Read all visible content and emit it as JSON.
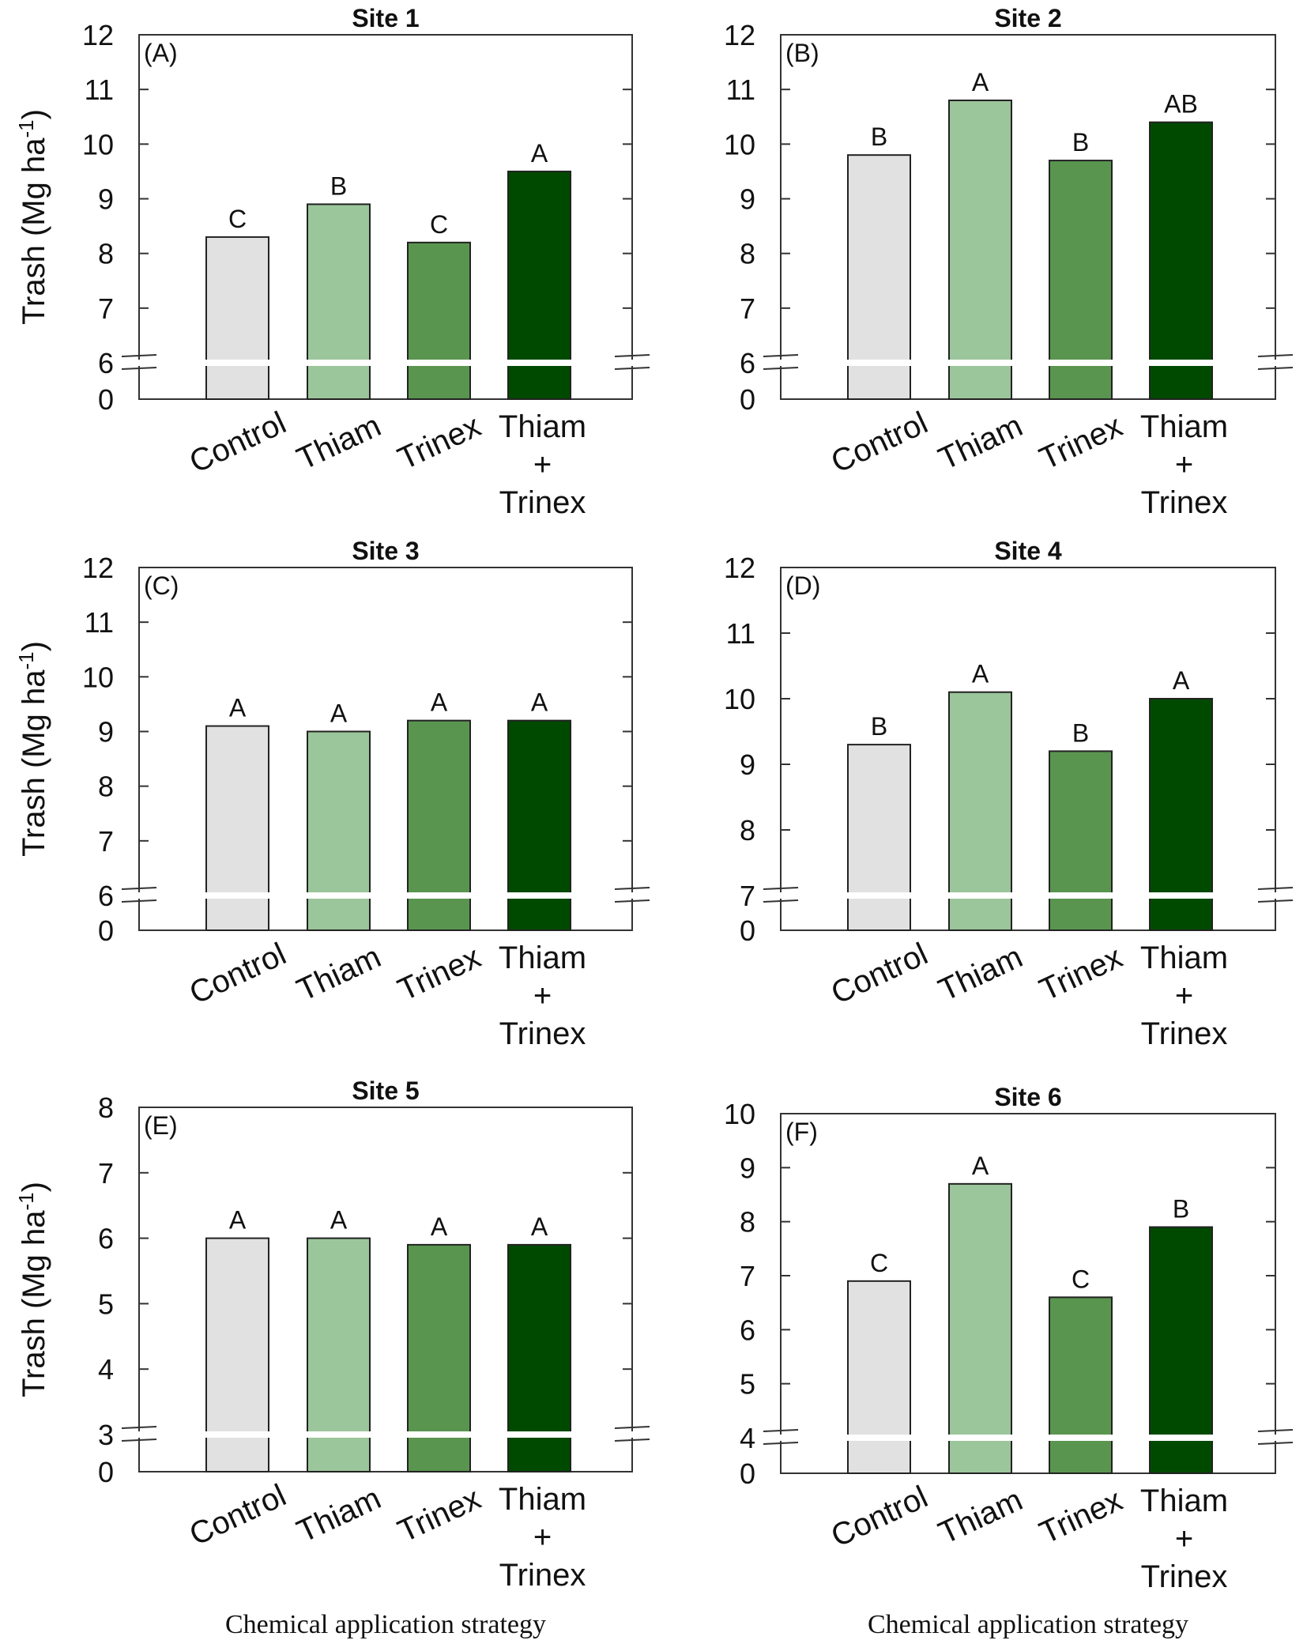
{
  "figure": {
    "x_axis_title": "Chemical application strategy",
    "y_axis_title": "Trash (Mg ha",
    "y_axis_title_superscript": "-1",
    "y_axis_title_suffix": ")"
  },
  "colors": {
    "control": "#e1e1e1",
    "thiam": "#9bc59b",
    "trinex": "#5a9550",
    "thiam_trinex": "#004a00",
    "axis": "#333333",
    "break": "#ffffff"
  },
  "chart_data": [
    {
      "panel": "(A)",
      "title": "Site 1",
      "type": "bar",
      "categories": [
        "Control",
        "Thiam",
        "Trinex",
        "Thiam + Trinex"
      ],
      "values": [
        8.3,
        8.9,
        8.2,
        9.5
      ],
      "letters": [
        "C",
        "B",
        "C",
        "A"
      ],
      "ylim": [
        6,
        12
      ],
      "yticks": [
        6,
        7,
        8,
        9,
        10,
        11,
        12
      ],
      "axis_break": true,
      "break_label": "0",
      "ylabel": "Trash (Mg ha-1)",
      "xlabel": ""
    },
    {
      "panel": "(B)",
      "title": "Site 2",
      "type": "bar",
      "categories": [
        "Control",
        "Thiam",
        "Trinex",
        "Thiam + Trinex"
      ],
      "values": [
        9.8,
        10.8,
        9.7,
        10.4
      ],
      "letters": [
        "B",
        "A",
        "B",
        "AB"
      ],
      "ylim": [
        6,
        12
      ],
      "yticks": [
        6,
        7,
        8,
        9,
        10,
        11,
        12
      ],
      "axis_break": true,
      "break_label": "0",
      "ylabel": "",
      "xlabel": ""
    },
    {
      "panel": "(C)",
      "title": "Site 3",
      "type": "bar",
      "categories": [
        "Control",
        "Thiam",
        "Trinex",
        "Thiam + Trinex"
      ],
      "values": [
        9.1,
        9.0,
        9.2,
        9.2
      ],
      "letters": [
        "A",
        "A",
        "A",
        "A"
      ],
      "ylim": [
        6,
        12
      ],
      "yticks": [
        6,
        7,
        8,
        9,
        10,
        11,
        12
      ],
      "axis_break": true,
      "break_label": "0",
      "ylabel": "Trash (Mg ha-1)",
      "xlabel": ""
    },
    {
      "panel": "(D)",
      "title": "Site 4",
      "type": "bar",
      "categories": [
        "Control",
        "Thiam",
        "Trinex",
        "Thiam + Trinex"
      ],
      "values": [
        9.3,
        10.1,
        9.2,
        10.0
      ],
      "letters": [
        "B",
        "A",
        "B",
        "A"
      ],
      "ylim": [
        7,
        12
      ],
      "yticks": [
        7,
        8,
        9,
        10,
        11,
        12
      ],
      "axis_break": true,
      "break_label": "0",
      "ylabel": "",
      "xlabel": ""
    },
    {
      "panel": "(E)",
      "title": "Site 5",
      "type": "bar",
      "categories": [
        "Control",
        "Thiam",
        "Trinex",
        "Thiam + Trinex"
      ],
      "values": [
        6.0,
        6.0,
        5.9,
        5.9
      ],
      "letters": [
        "A",
        "A",
        "A",
        "A"
      ],
      "ylim": [
        3,
        8
      ],
      "yticks": [
        3,
        4,
        5,
        6,
        7,
        8
      ],
      "axis_break": true,
      "break_label": "0",
      "ylabel": "Trash (Mg ha-1)",
      "xlabel": "Chemical application strategy"
    },
    {
      "panel": "(F)",
      "title": "Site 6",
      "type": "bar",
      "categories": [
        "Control",
        "Thiam",
        "Trinex",
        "Thiam + Trinex"
      ],
      "values": [
        6.9,
        8.7,
        6.6,
        7.9
      ],
      "letters": [
        "C",
        "A",
        "C",
        "B"
      ],
      "ylim": [
        4,
        10
      ],
      "yticks": [
        4,
        5,
        6,
        7,
        8,
        9,
        10
      ],
      "axis_break": true,
      "break_label": "0",
      "ylabel": "",
      "xlabel": "Chemical application strategy"
    }
  ]
}
